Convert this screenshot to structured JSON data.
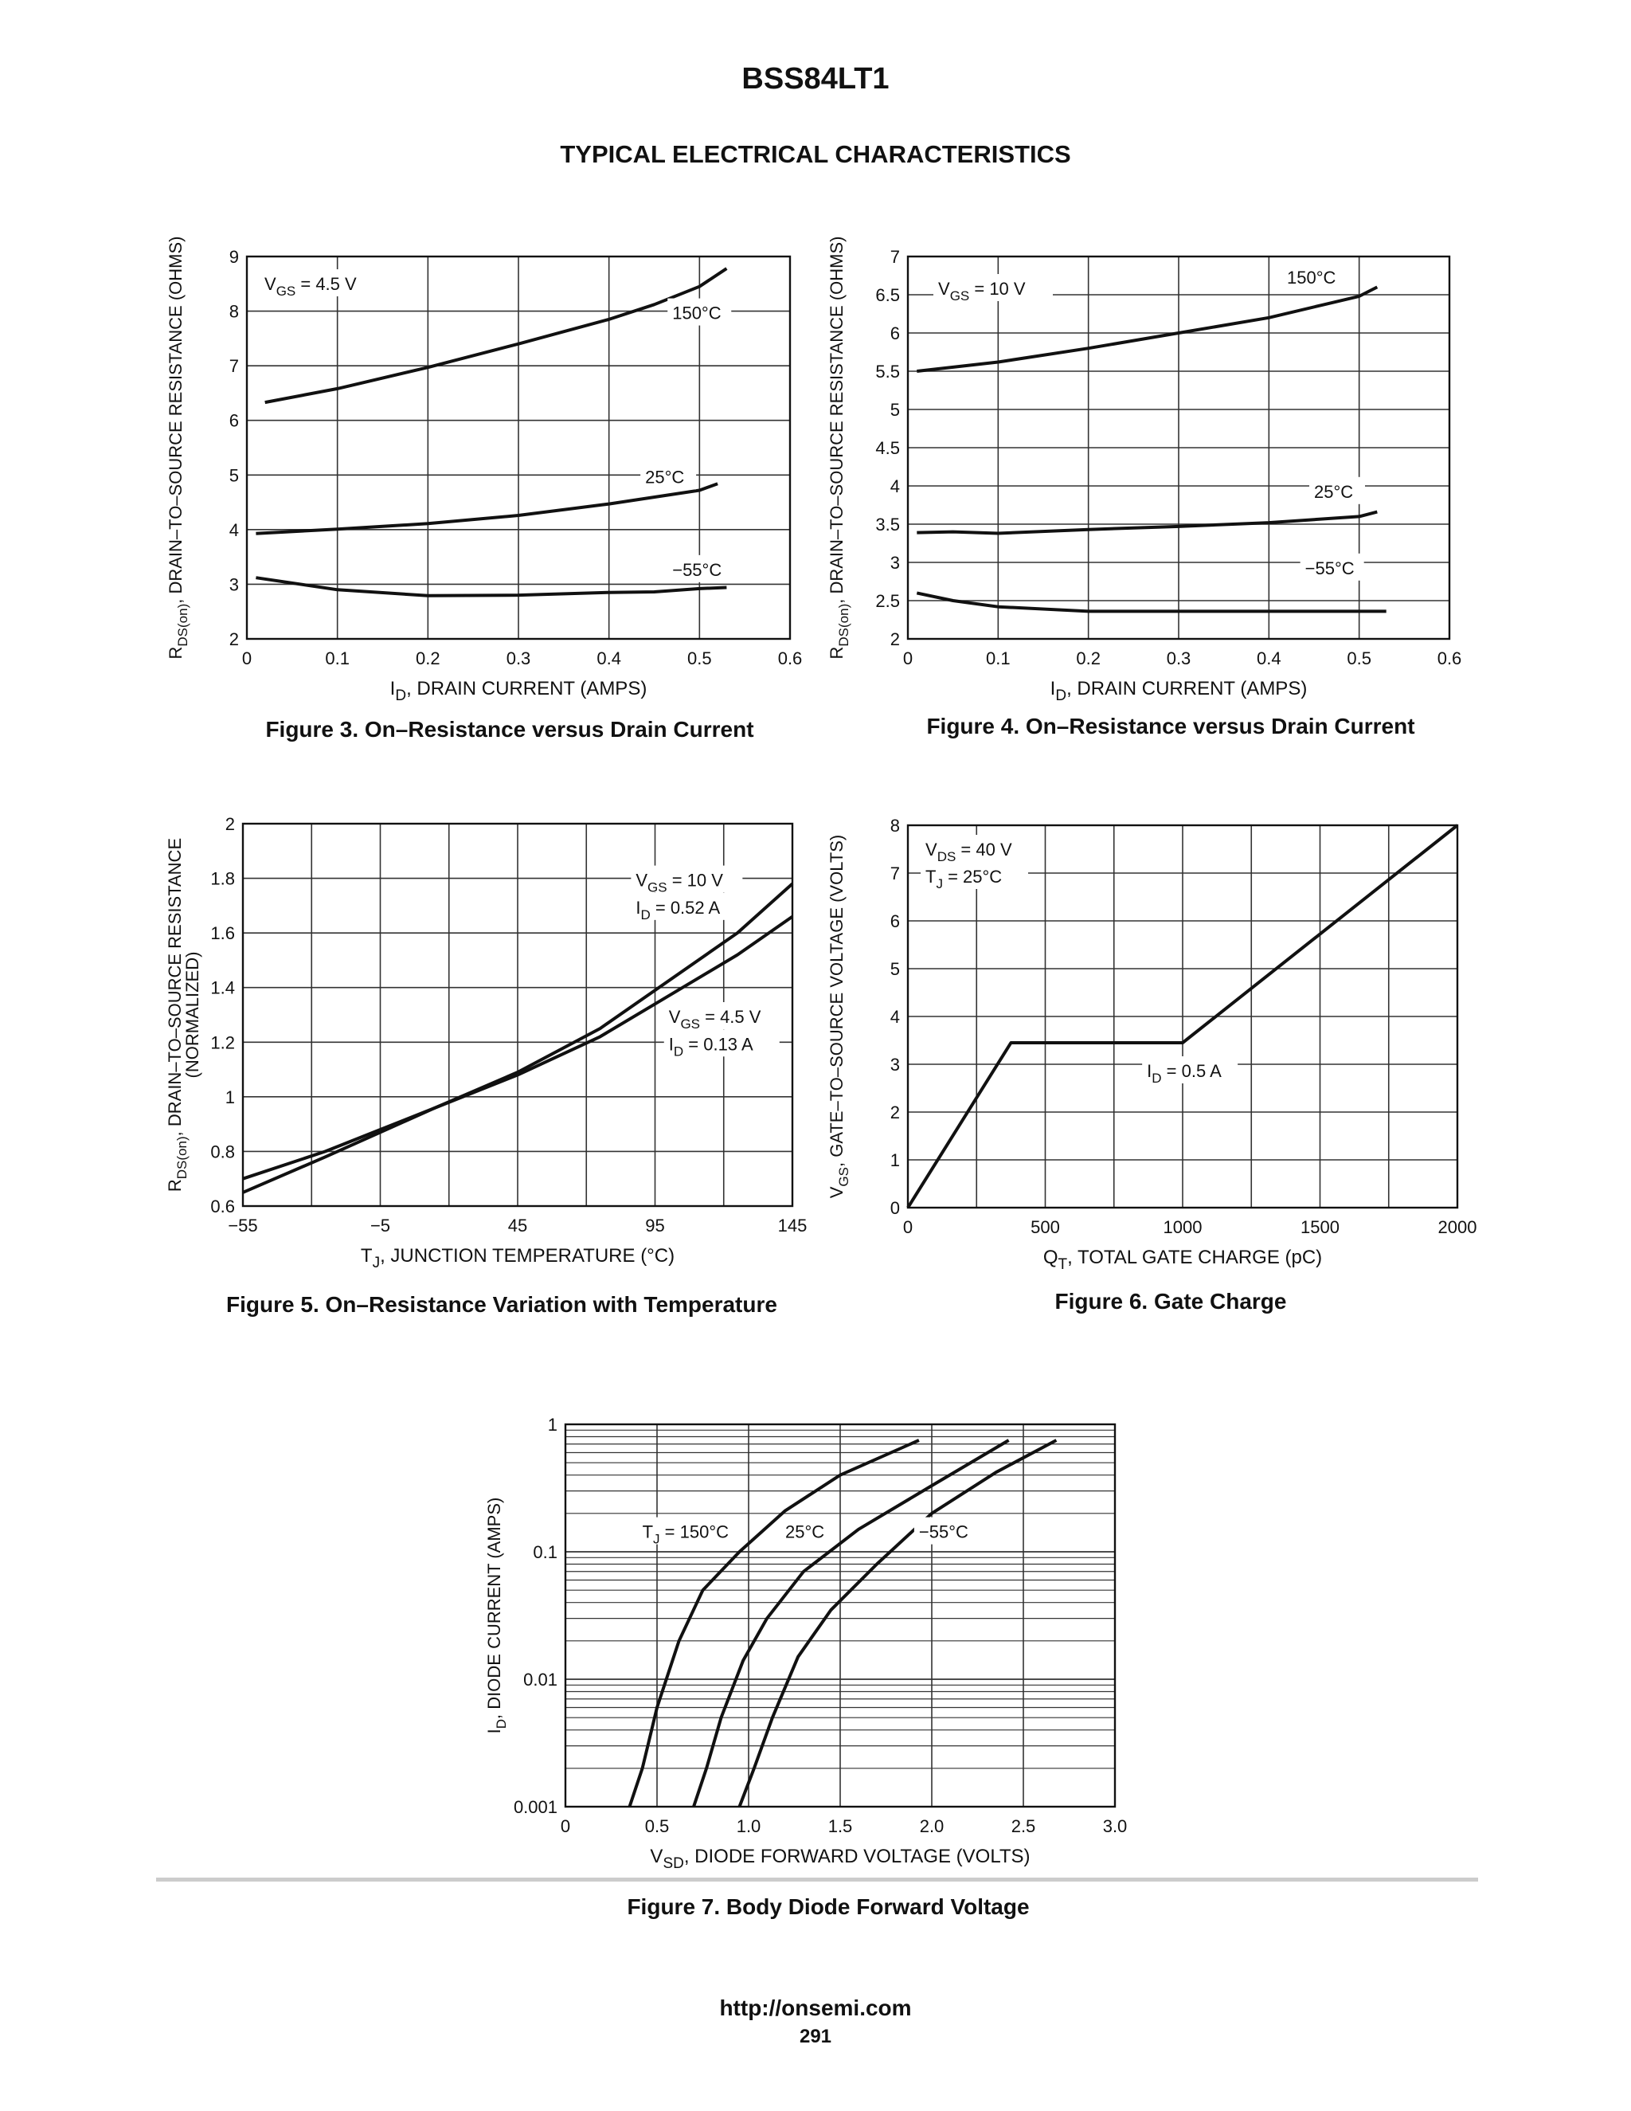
{
  "header": {
    "part_number": "BSS84LT1",
    "section_title": "TYPICAL ELECTRICAL CHARACTERISTICS"
  },
  "footer": {
    "url": "http://onsemi.com",
    "page": "291"
  },
  "chart_data": [
    {
      "id": "fig3",
      "type": "line",
      "caption": "Figure 3. On–Resistance versus Drain Current",
      "xlabel": {
        "main": "I",
        "sub": "D",
        "rest": ", DRAIN CURRENT (AMPS)"
      },
      "ylabel": {
        "main": "R",
        "sub": "DS(on)",
        "rest": ", DRAIN–TO–SOURCE RESISTANCE (OHMS)"
      },
      "xlim": [
        0,
        0.6
      ],
      "ylim": [
        2,
        9
      ],
      "xticks": [
        "0",
        "0.1",
        "0.2",
        "0.3",
        "0.4",
        "0.5",
        "0.6"
      ],
      "yticks": [
        "2",
        "3",
        "4",
        "5",
        "6",
        "7",
        "8",
        "9"
      ],
      "condition": {
        "main": "V",
        "sub": "GS",
        "rest": " = 4.5  V"
      },
      "series": [
        {
          "name": "150°C",
          "points": [
            [
              0.02,
              6.33
            ],
            [
              0.1,
              6.58
            ],
            [
              0.2,
              6.97
            ],
            [
              0.3,
              7.4
            ],
            [
              0.4,
              7.85
            ],
            [
              0.45,
              8.12
            ],
            [
              0.5,
              8.45
            ],
            [
              0.53,
              8.78
            ]
          ]
        },
        {
          "name": "25°C",
          "points": [
            [
              0.01,
              3.93
            ],
            [
              0.1,
              4.01
            ],
            [
              0.2,
              4.11
            ],
            [
              0.3,
              4.26
            ],
            [
              0.4,
              4.47
            ],
            [
              0.5,
              4.72
            ],
            [
              0.52,
              4.84
            ]
          ]
        },
        {
          "name": "−55°C",
          "points": [
            [
              0.01,
              3.12
            ],
            [
              0.1,
              2.9
            ],
            [
              0.2,
              2.79
            ],
            [
              0.3,
              2.8
            ],
            [
              0.4,
              2.85
            ],
            [
              0.45,
              2.86
            ],
            [
              0.5,
              2.92
            ],
            [
              0.53,
              2.94
            ]
          ]
        }
      ],
      "grid": true
    },
    {
      "id": "fig4",
      "type": "line",
      "caption": "Figure 4. On–Resistance versus Drain Current",
      "xlabel": {
        "main": "I",
        "sub": "D",
        "rest": ", DRAIN CURRENT (AMPS)"
      },
      "ylabel": {
        "main": "R",
        "sub": "DS(on)",
        "rest": ", DRAIN–TO–SOURCE RESISTANCE (OHMS)"
      },
      "xlim": [
        0,
        0.6
      ],
      "ylim": [
        2,
        7
      ],
      "xticks": [
        "0",
        "0.1",
        "0.2",
        "0.3",
        "0.4",
        "0.5",
        "0.6"
      ],
      "yticks": [
        "2",
        "2.5",
        "3",
        "3.5",
        "4",
        "4.5",
        "5",
        "5.5",
        "6",
        "6.5",
        "7"
      ],
      "condition": {
        "main": "V",
        "sub": "GS",
        "rest": " = 10 V"
      },
      "series": [
        {
          "name": "150°C",
          "points": [
            [
              0.01,
              5.5
            ],
            [
              0.1,
              5.62
            ],
            [
              0.2,
              5.8
            ],
            [
              0.3,
              6.0
            ],
            [
              0.4,
              6.2
            ],
            [
              0.5,
              6.48
            ],
            [
              0.52,
              6.6
            ]
          ]
        },
        {
          "name": "25°C",
          "points": [
            [
              0.01,
              3.39
            ],
            [
              0.05,
              3.4
            ],
            [
              0.1,
              3.38
            ],
            [
              0.2,
              3.43
            ],
            [
              0.3,
              3.47
            ],
            [
              0.4,
              3.52
            ],
            [
              0.5,
              3.6
            ],
            [
              0.52,
              3.66
            ]
          ]
        },
        {
          "name": "−55°C",
          "points": [
            [
              0.01,
              2.6
            ],
            [
              0.05,
              2.5
            ],
            [
              0.1,
              2.42
            ],
            [
              0.2,
              2.36
            ],
            [
              0.3,
              2.36
            ],
            [
              0.4,
              2.36
            ],
            [
              0.5,
              2.36
            ],
            [
              0.53,
              2.36
            ]
          ]
        }
      ],
      "grid": true
    },
    {
      "id": "fig5",
      "type": "line",
      "caption": "Figure 5. On–Resistance Variation with Temperature",
      "xlabel": {
        "main": "T",
        "sub": "J",
        "rest": ", JUNCTION TEMPERATURE (°C)"
      },
      "ylabel": {
        "main": "R",
        "sub": "DS(on)",
        "rest": ", DRAIN–TO–SOURCE RESISTANCE",
        "line2": "(NORMALIZED)"
      },
      "xlim": [
        -55,
        145
      ],
      "ylim": [
        0.6,
        2.0
      ],
      "xticks": [
        "−55",
        "−5",
        "45",
        "95",
        "145"
      ],
      "yticks": [
        "0.6",
        "0.8",
        "1",
        "1.2",
        "1.4",
        "1.6",
        "1.8",
        "2"
      ],
      "series": [
        {
          "name": "V_GS = 10 V, I_D = 0.52 A",
          "label": [
            {
              "main": "V",
              "sub": "GS",
              "rest": " = 10 V"
            },
            {
              "main": "I",
              "sub": "D",
              "rest": " = 0.52 A"
            }
          ],
          "points": [
            [
              -55,
              0.65
            ],
            [
              -25,
              0.78
            ],
            [
              -5,
              0.87
            ],
            [
              15,
              0.96
            ],
            [
              45,
              1.09
            ],
            [
              75,
              1.25
            ],
            [
              95,
              1.39
            ],
            [
              125,
              1.6
            ],
            [
              145,
              1.78
            ]
          ]
        },
        {
          "name": "V_GS = 4.5 V, I_D = 0.13 A",
          "label": [
            {
              "main": "V",
              "sub": "GS",
              "rest": " = 4.5 V"
            },
            {
              "main": "I",
              "sub": "D",
              "rest": " = 0.13 A"
            }
          ],
          "points": [
            [
              -55,
              0.7
            ],
            [
              -25,
              0.8
            ],
            [
              -5,
              0.88
            ],
            [
              15,
              0.96
            ],
            [
              45,
              1.08
            ],
            [
              75,
              1.22
            ],
            [
              95,
              1.34
            ],
            [
              125,
              1.52
            ],
            [
              145,
              1.66
            ]
          ]
        }
      ],
      "grid": true
    },
    {
      "id": "fig6",
      "type": "line",
      "caption": "Figure 6. Gate Charge",
      "xlabel": {
        "main": "Q",
        "sub": "T",
        "rest": ", TOTAL GATE CHARGE (pC)"
      },
      "ylabel": {
        "main": "V",
        "sub": "GS",
        "rest": ", GATE–TO–SOURCE VOLTAGE (VOLTS)"
      },
      "xlim": [
        0,
        2000
      ],
      "ylim": [
        0,
        8
      ],
      "xticks": [
        "0",
        "500",
        "1000",
        "1500",
        "2000"
      ],
      "yticks": [
        "0",
        "1",
        "2",
        "3",
        "4",
        "5",
        "6",
        "7",
        "8"
      ],
      "conditions": [
        {
          "main": "V",
          "sub": "DS",
          "rest": " = 40 V"
        },
        {
          "main": "T",
          "sub": "J",
          "rest": " = 25°C"
        }
      ],
      "series": [
        {
          "name": "I_D = 0.5 A",
          "label": {
            "main": "I",
            "sub": "D",
            "rest": " = 0.5 A"
          },
          "points": [
            [
              0,
              0
            ],
            [
              375,
              3.45
            ],
            [
              1000,
              3.45
            ],
            [
              2000,
              8
            ]
          ]
        }
      ],
      "grid": true
    },
    {
      "id": "fig7",
      "type": "line",
      "caption": "Figure 7. Body Diode Forward Voltage",
      "xlabel": {
        "main": "V",
        "sub": "SD",
        "rest": ", DIODE FORWARD VOLTAGE (VOLTS)"
      },
      "ylabel": {
        "main": "I",
        "sub": "D",
        "rest": ", DIODE CURRENT (AMPS)"
      },
      "xlim": [
        0,
        3.0
      ],
      "ylim": [
        0.001,
        1
      ],
      "yscale": "log",
      "xticks": [
        "0",
        "0.5",
        "1.0",
        "1.5",
        "2.0",
        "2.5",
        "3.0"
      ],
      "yticks": [
        "0.001",
        "0.01",
        "0.1",
        "1"
      ],
      "series": [
        {
          "name": "150°C",
          "label": {
            "main": "T",
            "sub": "J",
            "rest": " = 150°C"
          },
          "points": [
            [
              0.35,
              0.001
            ],
            [
              0.42,
              0.002
            ],
            [
              0.5,
              0.006
            ],
            [
              0.62,
              0.02
            ],
            [
              0.75,
              0.05
            ],
            [
              0.95,
              0.1
            ],
            [
              1.2,
              0.21
            ],
            [
              1.5,
              0.4
            ],
            [
              1.93,
              0.75
            ]
          ]
        },
        {
          "name": "25°C",
          "points": [
            [
              0.7,
              0.001
            ],
            [
              0.77,
              0.002
            ],
            [
              0.85,
              0.005
            ],
            [
              0.97,
              0.014
            ],
            [
              1.1,
              0.03
            ],
            [
              1.3,
              0.07
            ],
            [
              1.6,
              0.15
            ],
            [
              2.0,
              0.33
            ],
            [
              2.42,
              0.75
            ]
          ]
        },
        {
          "name": "−55°C",
          "points": [
            [
              0.95,
              0.001
            ],
            [
              1.03,
              0.002
            ],
            [
              1.13,
              0.005
            ],
            [
              1.27,
              0.015
            ],
            [
              1.45,
              0.035
            ],
            [
              1.7,
              0.08
            ],
            [
              2.0,
              0.2
            ],
            [
              2.35,
              0.42
            ],
            [
              2.68,
              0.75
            ]
          ]
        }
      ],
      "grid": true
    }
  ]
}
